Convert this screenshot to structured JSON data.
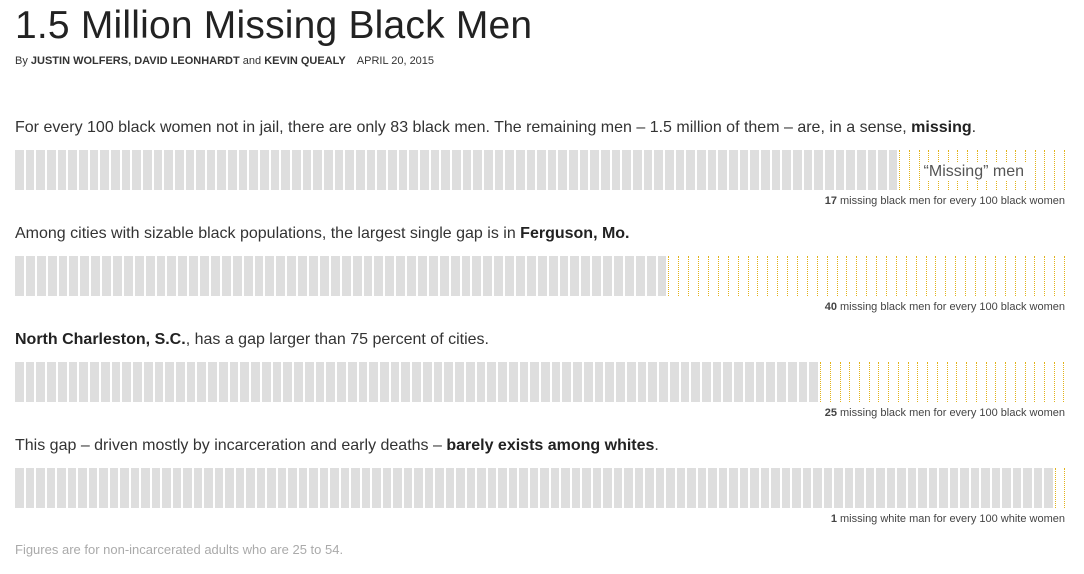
{
  "header": {
    "title": "1.5 Million Missing Black Men",
    "by_prefix": "By",
    "author1": "JUSTIN WOLFERS,",
    "author2": "DAVID LEONHARDT",
    "and_word": "and",
    "author3": "KEVIN QUEALY",
    "date": "APRIL 20, 2015"
  },
  "rows": [
    {
      "pre": "For every 100 black women not in jail, there are only 83 black men. The remaining men – 1.5 million of them – are, in a sense, ",
      "bold": "missing",
      "post": ".",
      "bar_label": "“Missing” men",
      "caption_num": "17",
      "caption_text": "missing black men for every 100 black women"
    },
    {
      "pre": "Among cities with sizable black populations, the largest single gap is in ",
      "bold": "Ferguson, Mo.",
      "post": "",
      "bar_label": "",
      "caption_num": "40",
      "caption_text": "missing black men for every 100 black women"
    },
    {
      "pre": "",
      "bold": "North Charleston, S.C.",
      "post": ", has a gap larger than 75 percent of cities.",
      "bar_label": "",
      "caption_num": "25",
      "caption_text": "missing black men for every 100 black women"
    },
    {
      "pre": "This gap – driven mostly by incarceration and early deaths – ",
      "bold": "barely exists among whites",
      "post": ".",
      "bar_label": "",
      "caption_num": "1",
      "caption_text": "missing white man for every 100 white women"
    }
  ],
  "footnote": "Figures are for non-incarcerated adults who are 25 to 54.",
  "colors": {
    "present": "#dedede",
    "missing_outline": "#e2b21a"
  },
  "chart_data": [
    {
      "type": "bar",
      "total": 100,
      "present": 83,
      "missing": 17,
      "title": "",
      "xlabel": "",
      "ylabel": ""
    },
    {
      "type": "bar",
      "total": 100,
      "present": 60,
      "missing": 40,
      "title": "",
      "xlabel": "",
      "ylabel": ""
    },
    {
      "type": "bar",
      "total": 100,
      "present": 75,
      "missing": 25,
      "title": "",
      "xlabel": "",
      "ylabel": ""
    },
    {
      "type": "bar",
      "total": 100,
      "present": 99,
      "missing": 1,
      "title": "",
      "xlabel": "",
      "ylabel": ""
    }
  ]
}
